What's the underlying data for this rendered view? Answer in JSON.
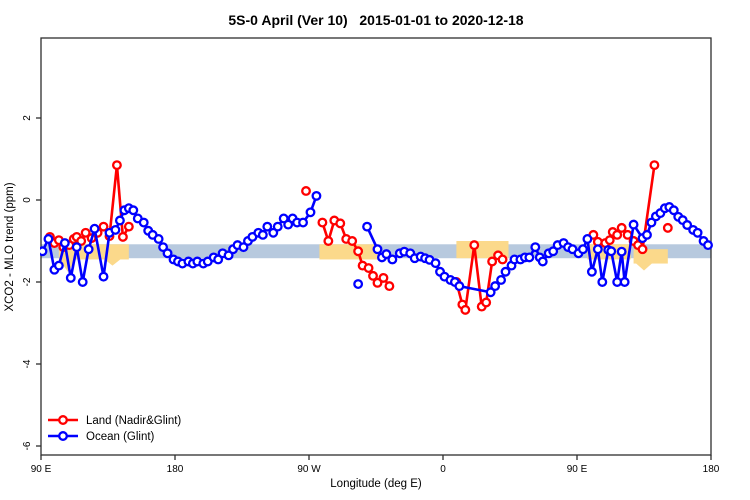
{
  "title": "5S-0 April (Ver 10)   2015-01-01 to 2020-12-18",
  "chart_data": {
    "type": "line",
    "title": "5S-0 April (Ver 10)   2015-01-01 to 2020-12-18",
    "xlabel": "Longitude (deg E)",
    "ylabel": "XCO2 - MLO trend (ppm)",
    "x_axis": {
      "range": [
        90,
        540
      ],
      "ticks": [
        90,
        180,
        270,
        360,
        450,
        540
      ],
      "tick_labels": [
        "90 E",
        "180",
        "90 W",
        "0",
        "90 E",
        "180"
      ]
    },
    "y_axis": {
      "range": [
        -6.2,
        3.95
      ],
      "ticks": [
        2,
        0,
        -2,
        -4,
        -6
      ],
      "tick_labels": [
        "2",
        "0",
        "-2",
        "-4",
        "-6"
      ]
    },
    "grid": "off",
    "band": {
      "name": "ocean-reference-band",
      "from_ppm": -1.08,
      "to_ppm": -1.42,
      "color": "#b7c9de"
    },
    "patch_color": "#fbd98b",
    "land_patches": [
      {
        "from_deg": 102,
        "to_deg": 149,
        "top_ppm": -1.08,
        "bottom_ppm": -1.45,
        "wedges": [
          {
            "at_deg": 108,
            "depth_ppm": -1.75
          },
          {
            "at_deg": 138,
            "depth_ppm": -1.6
          }
        ]
      },
      {
        "from_deg": 277,
        "to_deg": 316,
        "top_ppm": -1.08,
        "bottom_ppm": -1.45,
        "wedges": []
      },
      {
        "from_deg": 369,
        "to_deg": 404,
        "top_ppm": -1.0,
        "bottom_ppm": -1.42,
        "wedges": []
      },
      {
        "from_deg": 457,
        "to_deg": 486,
        "top_ppm": -1.08,
        "bottom_ppm": -1.45,
        "wedges": []
      },
      {
        "from_deg": 488,
        "to_deg": 511,
        "top_ppm": -1.2,
        "bottom_ppm": -1.55,
        "wedges": [
          {
            "at_deg": 495,
            "depth_ppm": -1.72
          }
        ]
      }
    ],
    "legend": {
      "position": "bottom-left",
      "entries": [
        "Land (Nadir&Glint)",
        "Ocean (Glint)"
      ]
    },
    "series": [
      {
        "name": "Land (Nadir&Glint)",
        "color": "#ff0000",
        "marker": "open-circle",
        "chains": [
          [
            [
              96,
              -0.9
            ],
            [
              99,
              -1.05
            ],
            [
              102,
              -0.98
            ],
            [
              105,
              -1.15
            ],
            [
              109,
              -1.1
            ],
            [
              112,
              -0.95
            ],
            [
              114,
              -0.9
            ],
            [
              117,
              -1.0
            ],
            [
              120,
              -0.8
            ],
            [
              124,
              -0.93
            ],
            [
              128,
              -0.8
            ],
            [
              132,
              -0.65
            ],
            [
              136,
              -0.88
            ],
            [
              141,
              0.85
            ],
            [
              145,
              -0.9
            ],
            [
              149,
              -0.65
            ]
          ],
          [
            [
              268,
              0.22
            ]
          ],
          [
            [
              279,
              -0.55
            ],
            [
              283,
              -1.0
            ],
            [
              287,
              -0.5
            ],
            [
              291,
              -0.57
            ],
            [
              295,
              -0.95
            ],
            [
              299,
              -1.0
            ],
            [
              303,
              -1.25
            ],
            [
              306,
              -1.6
            ],
            [
              310,
              -1.66
            ],
            [
              313,
              -1.85
            ],
            [
              316,
              -2.02
            ],
            [
              320,
              -1.9
            ],
            [
              324,
              -2.1
            ]
          ],
          [
            [
              369,
              -2.0
            ],
            [
              373,
              -2.55
            ],
            [
              375,
              -2.68
            ],
            [
              381,
              -1.1
            ],
            [
              386,
              -2.6
            ],
            [
              389,
              -2.5
            ],
            [
              393,
              -1.5
            ],
            [
              397,
              -1.35
            ],
            [
              400,
              -1.45
            ]
          ],
          [
            [
              461,
              -0.85
            ],
            [
              464,
              -1.02
            ],
            [
              469,
              -1.05
            ],
            [
              472,
              -0.98
            ],
            [
              474,
              -0.78
            ],
            [
              477,
              -0.85
            ],
            [
              480,
              -0.68
            ],
            [
              484,
              -0.85
            ],
            [
              488,
              -1.0
            ],
            [
              491,
              -1.1
            ],
            [
              494,
              -1.2
            ],
            [
              502,
              0.85
            ]
          ],
          [
            [
              511,
              -0.68
            ]
          ]
        ]
      },
      {
        "name": "Ocean (Glint)",
        "color": "#0000ff",
        "marker": "open-circle",
        "chains": [
          [
            [
              91,
              -1.25
            ],
            [
              95,
              -0.95
            ],
            [
              99,
              -1.7
            ],
            [
              102,
              -1.6
            ],
            [
              106,
              -1.05
            ],
            [
              110,
              -1.9
            ],
            [
              114,
              -1.15
            ],
            [
              118,
              -2.0
            ],
            [
              122,
              -1.2
            ],
            [
              126,
              -0.7
            ],
            [
              132,
              -1.87
            ],
            [
              136,
              -0.8
            ],
            [
              140,
              -0.73
            ],
            [
              143,
              -0.5
            ],
            [
              146,
              -0.25
            ],
            [
              149,
              -0.2
            ],
            [
              152,
              -0.25
            ],
            [
              155,
              -0.45
            ],
            [
              159,
              -0.55
            ],
            [
              162,
              -0.75
            ],
            [
              165,
              -0.85
            ],
            [
              169,
              -0.95
            ],
            [
              172,
              -1.15
            ],
            [
              175,
              -1.3
            ],
            [
              179,
              -1.45
            ],
            [
              182,
              -1.5
            ],
            [
              185,
              -1.55
            ],
            [
              189,
              -1.5
            ],
            [
              192,
              -1.55
            ],
            [
              195,
              -1.5
            ],
            [
              199,
              -1.55
            ],
            [
              202,
              -1.5
            ],
            [
              206,
              -1.4
            ],
            [
              209,
              -1.45
            ],
            [
              212,
              -1.3
            ],
            [
              216,
              -1.35
            ],
            [
              219,
              -1.2
            ],
            [
              222,
              -1.1
            ],
            [
              226,
              -1.15
            ],
            [
              229,
              -1.0
            ],
            [
              232,
              -0.9
            ],
            [
              236,
              -0.8
            ],
            [
              239,
              -0.85
            ],
            [
              242,
              -0.65
            ],
            [
              246,
              -0.8
            ],
            [
              249,
              -0.65
            ],
            [
              253,
              -0.45
            ],
            [
              256,
              -0.6
            ],
            [
              259,
              -0.45
            ],
            [
              262,
              -0.55
            ],
            [
              266,
              -0.55
            ],
            [
              271,
              -0.3
            ],
            [
              275,
              0.1
            ]
          ],
          [
            [
              303,
              -2.05
            ]
          ],
          [
            [
              309,
              -0.65
            ],
            [
              316,
              -1.2
            ],
            [
              319,
              -1.4
            ],
            [
              322,
              -1.32
            ],
            [
              326,
              -1.45
            ],
            [
              331,
              -1.3
            ],
            [
              334,
              -1.26
            ],
            [
              338,
              -1.3
            ],
            [
              341,
              -1.42
            ],
            [
              345,
              -1.38
            ],
            [
              348,
              -1.42
            ],
            [
              351,
              -1.46
            ],
            [
              355,
              -1.54
            ],
            [
              358,
              -1.75
            ],
            [
              361,
              -1.87
            ],
            [
              365,
              -1.95
            ],
            [
              368,
              -2.0
            ],
            [
              371,
              -2.1
            ],
            [
              392,
              -2.25
            ],
            [
              395,
              -2.1
            ],
            [
              399,
              -1.95
            ],
            [
              402,
              -1.75
            ],
            [
              406,
              -1.6
            ],
            [
              408,
              -1.45
            ],
            [
              412,
              -1.45
            ],
            [
              415,
              -1.4
            ],
            [
              418,
              -1.4
            ],
            [
              422,
              -1.15
            ],
            [
              425,
              -1.4
            ],
            [
              427,
              -1.5
            ],
            [
              431,
              -1.3
            ],
            [
              434,
              -1.25
            ],
            [
              437,
              -1.1
            ],
            [
              441,
              -1.05
            ],
            [
              444,
              -1.15
            ],
            [
              447,
              -1.2
            ],
            [
              451,
              -1.3
            ],
            [
              454,
              -1.2
            ],
            [
              457,
              -0.95
            ],
            [
              460,
              -1.75
            ],
            [
              464,
              -1.2
            ],
            [
              467,
              -2.0
            ],
            [
              471,
              -1.22
            ],
            [
              473,
              -1.25
            ],
            [
              477,
              -2.0
            ],
            [
              480,
              -1.26
            ],
            [
              482,
              -2.0
            ],
            [
              488,
              -0.6
            ],
            [
              494,
              -0.93
            ],
            [
              497,
              -0.85
            ],
            [
              500,
              -0.55
            ],
            [
              503,
              -0.4
            ],
            [
              506,
              -0.32
            ],
            [
              509,
              -0.2
            ],
            [
              512,
              -0.17
            ],
            [
              515,
              -0.25
            ],
            [
              518,
              -0.41
            ],
            [
              521,
              -0.49
            ],
            [
              524,
              -0.61
            ],
            [
              528,
              -0.73
            ],
            [
              531,
              -0.8
            ],
            [
              535,
              -1.0
            ],
            [
              538,
              -1.1
            ]
          ]
        ]
      }
    ]
  }
}
